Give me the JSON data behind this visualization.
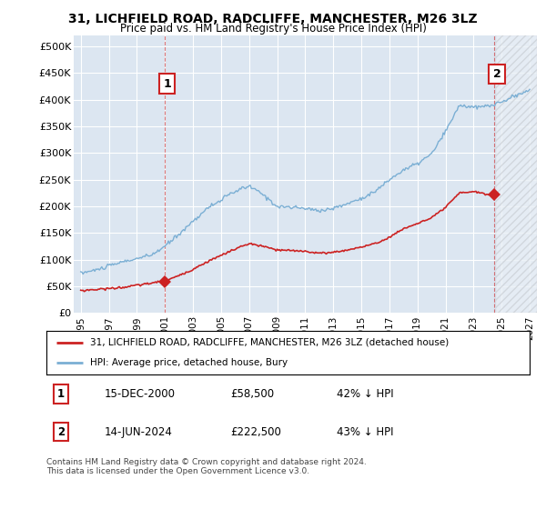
{
  "title": "31, LICHFIELD ROAD, RADCLIFFE, MANCHESTER, M26 3LZ",
  "subtitle": "Price paid vs. HM Land Registry's House Price Index (HPI)",
  "ylabel_ticks": [
    "£0",
    "£50K",
    "£100K",
    "£150K",
    "£200K",
    "£250K",
    "£300K",
    "£350K",
    "£400K",
    "£450K",
    "£500K"
  ],
  "ytick_values": [
    0,
    50000,
    100000,
    150000,
    200000,
    250000,
    300000,
    350000,
    400000,
    450000,
    500000
  ],
  "ylim": [
    0,
    520000
  ],
  "xlim_start": 1994.5,
  "xlim_end": 2027.5,
  "hpi_color": "#7bafd4",
  "price_color": "#cc2222",
  "background_color": "#dce6f1",
  "grid_color": "#ffffff",
  "transaction1_x": 2001.0,
  "transaction1_y": 58500,
  "transaction2_x": 2024.46,
  "transaction2_y": 222500,
  "transaction1_date": "15-DEC-2000",
  "transaction1_price": 58500,
  "transaction1_hpi_pct": "42% ↓ HPI",
  "transaction2_date": "14-JUN-2024",
  "transaction2_price": 222500,
  "transaction2_hpi_pct": "43% ↓ HPI",
  "legend_line1": "31, LICHFIELD ROAD, RADCLIFFE, MANCHESTER, M26 3LZ (detached house)",
  "legend_line2": "HPI: Average price, detached house, Bury",
  "footnote": "Contains HM Land Registry data © Crown copyright and database right 2024.\nThis data is licensed under the Open Government Licence v3.0.",
  "xtick_years": [
    1995,
    1997,
    1999,
    2001,
    2003,
    2005,
    2007,
    2009,
    2011,
    2013,
    2015,
    2017,
    2019,
    2021,
    2023,
    2025,
    2027
  ],
  "future_start": 2024.5,
  "hpi_knots_x": [
    1995.0,
    1996.0,
    1997.0,
    1998.0,
    1999.0,
    2000.0,
    2001.0,
    2002.0,
    2003.0,
    2004.0,
    2005.0,
    2006.0,
    2007.0,
    2008.0,
    2009.0,
    2010.0,
    2011.0,
    2012.0,
    2013.0,
    2014.0,
    2015.0,
    2016.0,
    2017.0,
    2018.0,
    2019.0,
    2020.0,
    2021.0,
    2022.0,
    2023.0,
    2024.0,
    2025.0,
    2026.0,
    2027.0
  ],
  "hpi_knots_y": [
    75000,
    80000,
    88000,
    96000,
    102000,
    108000,
    125000,
    148000,
    172000,
    196000,
    212000,
    228000,
    238000,
    222000,
    200000,
    198000,
    196000,
    192000,
    196000,
    205000,
    215000,
    228000,
    250000,
    268000,
    280000,
    298000,
    340000,
    390000,
    385000,
    388000,
    395000,
    408000,
    418000
  ],
  "red_knots_x": [
    1995.0,
    1996.0,
    1997.0,
    1998.0,
    1999.0,
    2000.0,
    2001.0,
    2002.0,
    2003.0,
    2004.0,
    2005.0,
    2006.0,
    2007.0,
    2008.0,
    2009.0,
    2010.0,
    2011.0,
    2012.0,
    2013.0,
    2014.0,
    2015.0,
    2016.0,
    2017.0,
    2018.0,
    2019.0,
    2020.0,
    2021.0,
    2022.0,
    2023.0,
    2024.0,
    2024.5
  ],
  "red_knots_y": [
    42000,
    44000,
    46000,
    48000,
    52000,
    56000,
    60000,
    70000,
    82000,
    96000,
    108000,
    120000,
    130000,
    125000,
    118000,
    117000,
    116000,
    112000,
    114000,
    118000,
    124000,
    130000,
    142000,
    158000,
    168000,
    178000,
    198000,
    225000,
    228000,
    222000,
    222500
  ]
}
